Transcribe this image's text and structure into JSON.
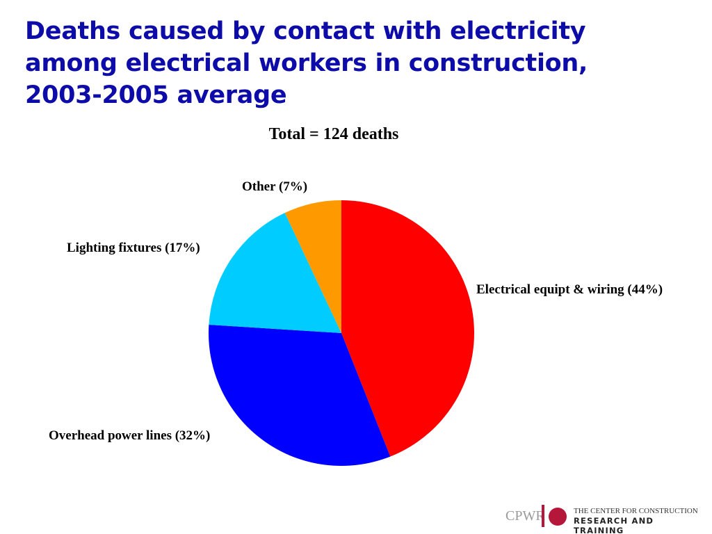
{
  "chart_data": {
    "type": "pie",
    "title": "Deaths caused by contact with electricity among electrical workers in construction, 2003-2005 average",
    "subtitle": "Total = 124 deaths",
    "slices": [
      {
        "label": "Electrical equipt & wiring (44%)",
        "value": 44,
        "color": "#ff0000"
      },
      {
        "label": "Overhead power lines (32%)",
        "value": 32,
        "color": "#0000ff"
      },
      {
        "label": "Lighting fixtures (17%)",
        "value": 17,
        "color": "#00ccff"
      },
      {
        "label": "Other (7%)",
        "value": 7,
        "color": "#ff9900"
      }
    ],
    "start_angle": "12 o'clock",
    "direction": "clockwise",
    "legend": "none"
  },
  "logo": {
    "abbr": "CPWR",
    "line1": "THE CENTER FOR CONSTRUCTION",
    "line2": "RESEARCH AND TRAINING"
  }
}
